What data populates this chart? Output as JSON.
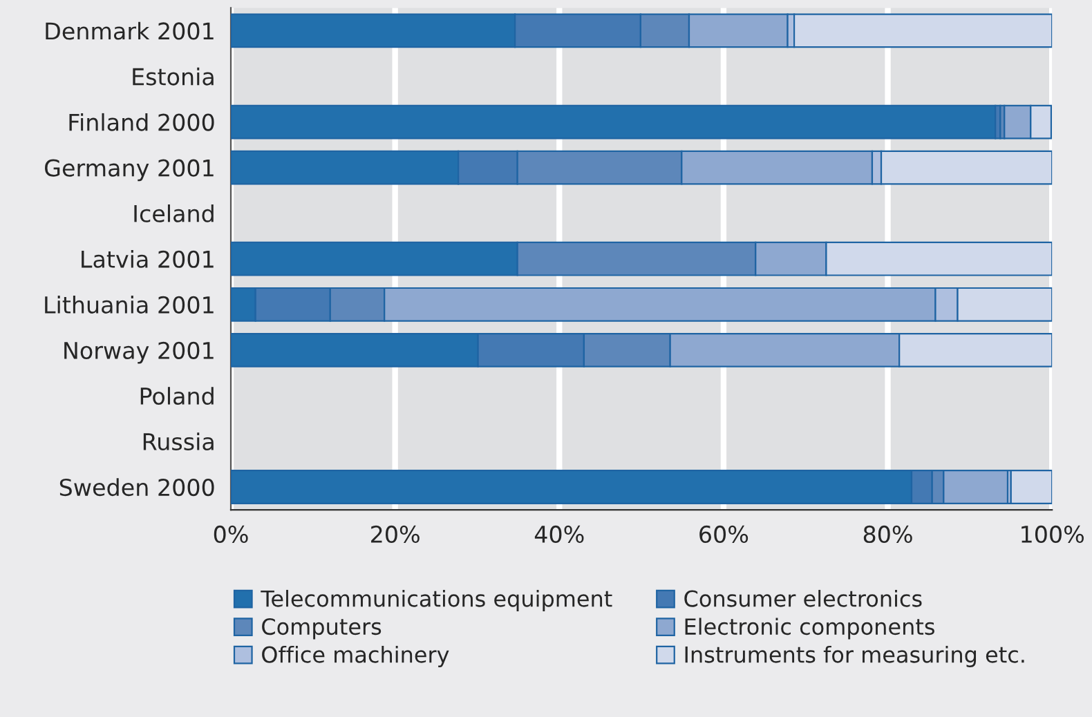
{
  "chart_data": {
    "type": "bar",
    "orientation": "horizontal",
    "stacked": true,
    "categories": [
      "Denmark 2001",
      "Estonia",
      "Finland 2000",
      "Germany 2001",
      "Iceland",
      "Latvia 2001",
      "Lithuania 2001",
      "Norway 2001",
      "Poland",
      "Russia",
      "Sweden 2000"
    ],
    "series": [
      {
        "name": "Telecommunications equipment",
        "color": "#2270ad",
        "values": [
          34.6,
          null,
          93.1,
          27.7,
          null,
          34.9,
          3.0,
          30.1,
          null,
          null,
          82.9
        ]
      },
      {
        "name": "Consumer electronics",
        "color": "#4479b3",
        "values": [
          15.3,
          null,
          0.6,
          7.2,
          null,
          null,
          9.1,
          12.9,
          null,
          null,
          2.5
        ]
      },
      {
        "name": "Computers",
        "color": "#5d87ba",
        "values": [
          5.9,
          null,
          0.5,
          20.0,
          null,
          29.0,
          6.6,
          10.5,
          null,
          null,
          1.4
        ]
      },
      {
        "name": "Electronic components",
        "color": "#8ea8d0",
        "values": [
          12.0,
          null,
          3.2,
          23.2,
          null,
          8.6,
          67.1,
          27.9,
          null,
          null,
          7.8
        ]
      },
      {
        "name": "Office machinery",
        "color": "#aebfdf",
        "values": [
          0.8,
          null,
          null,
          1.1,
          null,
          null,
          2.7,
          null,
          null,
          null,
          0.4
        ]
      },
      {
        "name": "Instruments for measuring etc.",
        "color": "#d0d9eb",
        "values": [
          31.4,
          null,
          2.5,
          20.8,
          null,
          27.5,
          11.5,
          18.6,
          null,
          null,
          5.0
        ]
      }
    ],
    "xlim": [
      0,
      100
    ],
    "xticks": [
      {
        "value": 0,
        "label": "0%"
      },
      {
        "value": 20,
        "label": "20%"
      },
      {
        "value": 40,
        "label": "40%"
      },
      {
        "value": 60,
        "label": "60%"
      },
      {
        "value": 80,
        "label": "80%"
      },
      {
        "value": 100,
        "label": "100%"
      }
    ],
    "grid": "x",
    "legend": "bottom"
  }
}
